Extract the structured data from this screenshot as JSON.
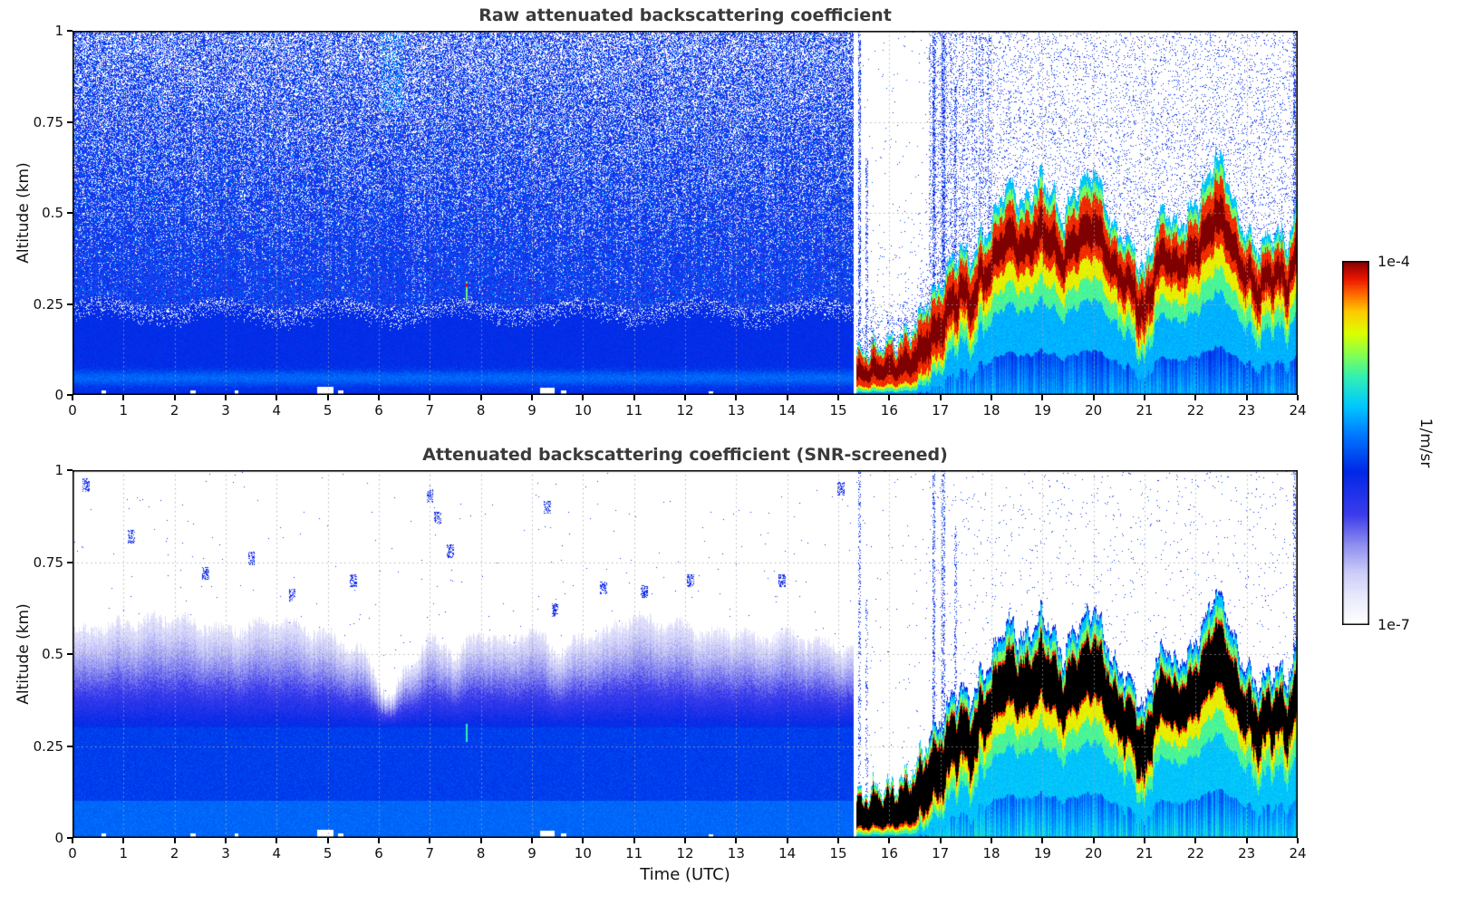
{
  "figure": {
    "background": "#ffffff",
    "title_color": "#3a3a3a",
    "xlabel": "Time (UTC)",
    "grid": {
      "x_every_hours": 1,
      "y_at": [
        0.25,
        0.5,
        0.75
      ],
      "style": "dotted",
      "color": "#aaaaaa"
    },
    "panels": [
      {
        "title": "Raw attenuated backscattering coefficient",
        "ylabel": "Altitude (km)",
        "screened": false,
        "x_ticks": [
          0,
          1,
          2,
          3,
          4,
          5,
          6,
          7,
          8,
          9,
          10,
          11,
          12,
          13,
          14,
          15,
          16,
          17,
          18,
          19,
          20,
          21,
          22,
          23,
          24
        ],
        "y_ticks": [
          0,
          0.25,
          0.5,
          0.75,
          1
        ],
        "y_tick_labels": [
          "0",
          "0.25",
          "0.5",
          "0.75",
          "1"
        ]
      },
      {
        "title": "Attenuated backscattering coefficient (SNR-screened)",
        "ylabel": "Altitude (km)",
        "screened": true,
        "x_ticks": [
          0,
          1,
          2,
          3,
          4,
          5,
          6,
          7,
          8,
          9,
          10,
          11,
          12,
          13,
          14,
          15,
          16,
          17,
          18,
          19,
          20,
          21,
          22,
          23,
          24
        ],
        "y_ticks": [
          0,
          0.25,
          0.5,
          0.75,
          1
        ],
        "y_tick_labels": [
          "0",
          "0.25",
          "0.5",
          "0.75",
          "1"
        ]
      }
    ],
    "colorbar": {
      "top_label": "1e-4",
      "bottom_label": "1e-7",
      "units_label": "1/m/sr",
      "stops": [
        {
          "u": 0.0,
          "rgb": [
            255,
            255,
            255
          ]
        },
        {
          "u": 0.07,
          "rgb": [
            235,
            235,
            252
          ]
        },
        {
          "u": 0.14,
          "rgb": [
            205,
            205,
            248
          ]
        },
        {
          "u": 0.22,
          "rgb": [
            140,
            140,
            240
          ]
        },
        {
          "u": 0.3,
          "rgb": [
            60,
            60,
            235
          ]
        },
        {
          "u": 0.42,
          "rgb": [
            0,
            40,
            230
          ]
        },
        {
          "u": 0.52,
          "rgb": [
            0,
            120,
            255
          ]
        },
        {
          "u": 0.6,
          "rgb": [
            0,
            200,
            255
          ]
        },
        {
          "u": 0.68,
          "rgb": [
            50,
            240,
            180
          ]
        },
        {
          "u": 0.74,
          "rgb": [
            130,
            255,
            80
          ]
        },
        {
          "u": 0.8,
          "rgb": [
            220,
            255,
            0
          ]
        },
        {
          "u": 0.86,
          "rgb": [
            255,
            200,
            0
          ]
        },
        {
          "u": 0.91,
          "rgb": [
            255,
            100,
            0
          ]
        },
        {
          "u": 0.95,
          "rgb": [
            235,
            20,
            0
          ]
        },
        {
          "u": 1.0,
          "rgb": [
            127,
            0,
            0
          ]
        }
      ]
    }
  },
  "chart_data": [
    {
      "type": "heatmap",
      "title": "Raw attenuated backscattering coefficient",
      "xlabel": "Time (UTC)",
      "ylabel": "Altitude (km)",
      "x_range": [
        0,
        24
      ],
      "y_range_km": [
        0,
        1
      ],
      "x_ticks": [
        0,
        1,
        2,
        3,
        4,
        5,
        6,
        7,
        8,
        9,
        10,
        11,
        12,
        13,
        14,
        15,
        16,
        17,
        18,
        19,
        20,
        21,
        22,
        23,
        24
      ],
      "y_ticks": [
        0,
        0.25,
        0.5,
        0.75,
        1
      ],
      "color_scale": {
        "type": "log",
        "min": 1e-07,
        "max": 0.0001,
        "units": "1/m/sr",
        "colormap": "white-blue-cyan-green-yellow-red-darkred"
      },
      "features": [
        "0-15.3 UTC: dense blue receiver-noise speckle above ~0.25 km, density decreasing with altitude; solid blue signal below ~0.25 km with a brighter band near 0.05 km",
        "15.3-16.8 UTC: mostly white gap aloft with a few full-height blue noise streaks; strong dark-red surface layer 0-0.12 km with cyan/green/yellow fringes",
        "16.8-24 UTC: elevated aerosol/cloud layer with dark-red core whose top undulates between ~0.3 and ~0.66 km; yellow-green-cyan fringes below and cyan near the ground"
      ],
      "legend": "none"
    },
    {
      "type": "heatmap",
      "title": "Attenuated backscattering coefficient (SNR-screened)",
      "xlabel": "Time (UTC)",
      "ylabel": "Altitude (km)",
      "x_range": [
        0,
        24
      ],
      "y_range_km": [
        0,
        1
      ],
      "x_ticks": [
        0,
        1,
        2,
        3,
        4,
        5,
        6,
        7,
        8,
        9,
        10,
        11,
        12,
        13,
        14,
        15,
        16,
        17,
        18,
        19,
        20,
        21,
        22,
        23,
        24
      ],
      "y_ticks": [
        0,
        0.25,
        0.5,
        0.75,
        1
      ],
      "color_scale": {
        "type": "log",
        "min": 1e-07,
        "max": 0.0001,
        "units": "1/m/sr",
        "colormap": "white-blue-cyan-green-yellow-red-darkred, saturated core shown black"
      },
      "features": [
        "0-15.3 UTC: smooth boundary-layer signal, strong blue below ~0.3 km fading through pale blues to a ragged top near 0.5-0.6 km (dip to ~0.38 km near 6.2 UTC); white with sparse blue specks above",
        "15.3-16.8 UTC: white gap aloft; saturated (black) surface layer 0-0.12 km with rainbow fringes",
        "16.8-24 UTC: elevated layer with black (saturated) core, red/yellow/green/cyan fringes, cyan below down to the ground; layer top undulating ~0.3-0.66 km"
      ],
      "legend": "none"
    }
  ],
  "render_params": {
    "seed": 7,
    "transition_utc": 15.3,
    "gap_end_utc": 16.78,
    "layer_top_km": {
      "t": [
        15.3,
        15.6,
        15.9,
        16.2,
        16.5,
        16.8,
        17.0,
        17.2,
        17.4,
        17.6,
        17.8,
        18.0,
        18.2,
        18.4,
        18.6,
        18.8,
        19.0,
        19.2,
        19.4,
        19.6,
        19.8,
        20.0,
        20.2,
        20.4,
        20.6,
        20.8,
        21.0,
        21.2,
        21.4,
        21.6,
        21.8,
        22.0,
        22.2,
        22.4,
        22.6,
        22.8,
        23.0,
        23.2,
        23.4,
        23.6,
        23.8,
        24.0
      ],
      "z": [
        0.11,
        0.13,
        0.135,
        0.15,
        0.19,
        0.27,
        0.3,
        0.36,
        0.4,
        0.37,
        0.43,
        0.47,
        0.55,
        0.58,
        0.52,
        0.56,
        0.6,
        0.55,
        0.48,
        0.55,
        0.58,
        0.62,
        0.55,
        0.46,
        0.44,
        0.4,
        0.33,
        0.45,
        0.52,
        0.46,
        0.48,
        0.52,
        0.58,
        0.66,
        0.62,
        0.5,
        0.45,
        0.4,
        0.43,
        0.45,
        0.42,
        0.5
      ]
    },
    "bl_top_km": {
      "t": [
        0,
        1,
        2,
        3,
        4,
        5,
        5.7,
        6.0,
        6.25,
        6.5,
        7,
        7.5,
        8,
        8.5,
        9,
        9.5,
        10,
        10.5,
        11,
        11.5,
        12,
        12.5,
        13,
        13.5,
        14,
        14.5,
        15,
        15.3
      ],
      "z": [
        0.56,
        0.58,
        0.6,
        0.56,
        0.59,
        0.55,
        0.5,
        0.42,
        0.37,
        0.45,
        0.54,
        0.5,
        0.55,
        0.53,
        0.57,
        0.5,
        0.54,
        0.56,
        0.6,
        0.58,
        0.57,
        0.55,
        0.56,
        0.54,
        0.55,
        0.53,
        0.52,
        0.5
      ]
    },
    "streaks": [
      {
        "t": 15.42,
        "w": 0.06,
        "hmax": 1.0,
        "dens": 0.5
      },
      {
        "t": 15.56,
        "w": 0.04,
        "hmax": 0.65,
        "dens": 0.35
      },
      {
        "t": 16.88,
        "w": 0.05,
        "hmax": 1.0,
        "dens": 0.6
      },
      {
        "t": 17.06,
        "w": 0.06,
        "hmax": 1.0,
        "dens": 0.55
      },
      {
        "t": 17.3,
        "w": 0.05,
        "hmax": 0.85,
        "dens": 0.45
      },
      {
        "t": 23.94,
        "w": 0.05,
        "hmax": 1.0,
        "dens": 0.5
      }
    ],
    "ground_notches": [
      {
        "t": 0.6,
        "w": 0.08,
        "h": 0.01
      },
      {
        "t": 2.35,
        "w": 0.1,
        "h": 0.012
      },
      {
        "t": 3.2,
        "w": 0.07,
        "h": 0.01
      },
      {
        "t": 4.95,
        "w": 0.32,
        "h": 0.02
      },
      {
        "t": 5.25,
        "w": 0.1,
        "h": 0.012
      },
      {
        "t": 9.3,
        "w": 0.3,
        "h": 0.018
      },
      {
        "t": 9.62,
        "w": 0.12,
        "h": 0.012
      },
      {
        "t": 12.5,
        "w": 0.09,
        "h": 0.008
      }
    ],
    "speck_clusters": [
      {
        "t": 0.25,
        "a": 0.96
      },
      {
        "t": 1.15,
        "a": 0.82
      },
      {
        "t": 2.6,
        "a": 0.72
      },
      {
        "t": 3.5,
        "a": 0.76
      },
      {
        "t": 4.3,
        "a": 0.66
      },
      {
        "t": 5.5,
        "a": 0.7
      },
      {
        "t": 7.0,
        "a": 0.93
      },
      {
        "t": 7.15,
        "a": 0.87
      },
      {
        "t": 7.4,
        "a": 0.78
      },
      {
        "t": 9.3,
        "a": 0.9
      },
      {
        "t": 9.45,
        "a": 0.62
      },
      {
        "t": 10.4,
        "a": 0.68
      },
      {
        "t": 11.2,
        "a": 0.67
      },
      {
        "t": 12.1,
        "a": 0.7
      },
      {
        "t": 13.9,
        "a": 0.7
      },
      {
        "t": 15.05,
        "a": 0.95
      }
    ],
    "anomaly": {
      "t": 7.72,
      "a_lo": 0.26,
      "a_hi": 0.31
    }
  }
}
